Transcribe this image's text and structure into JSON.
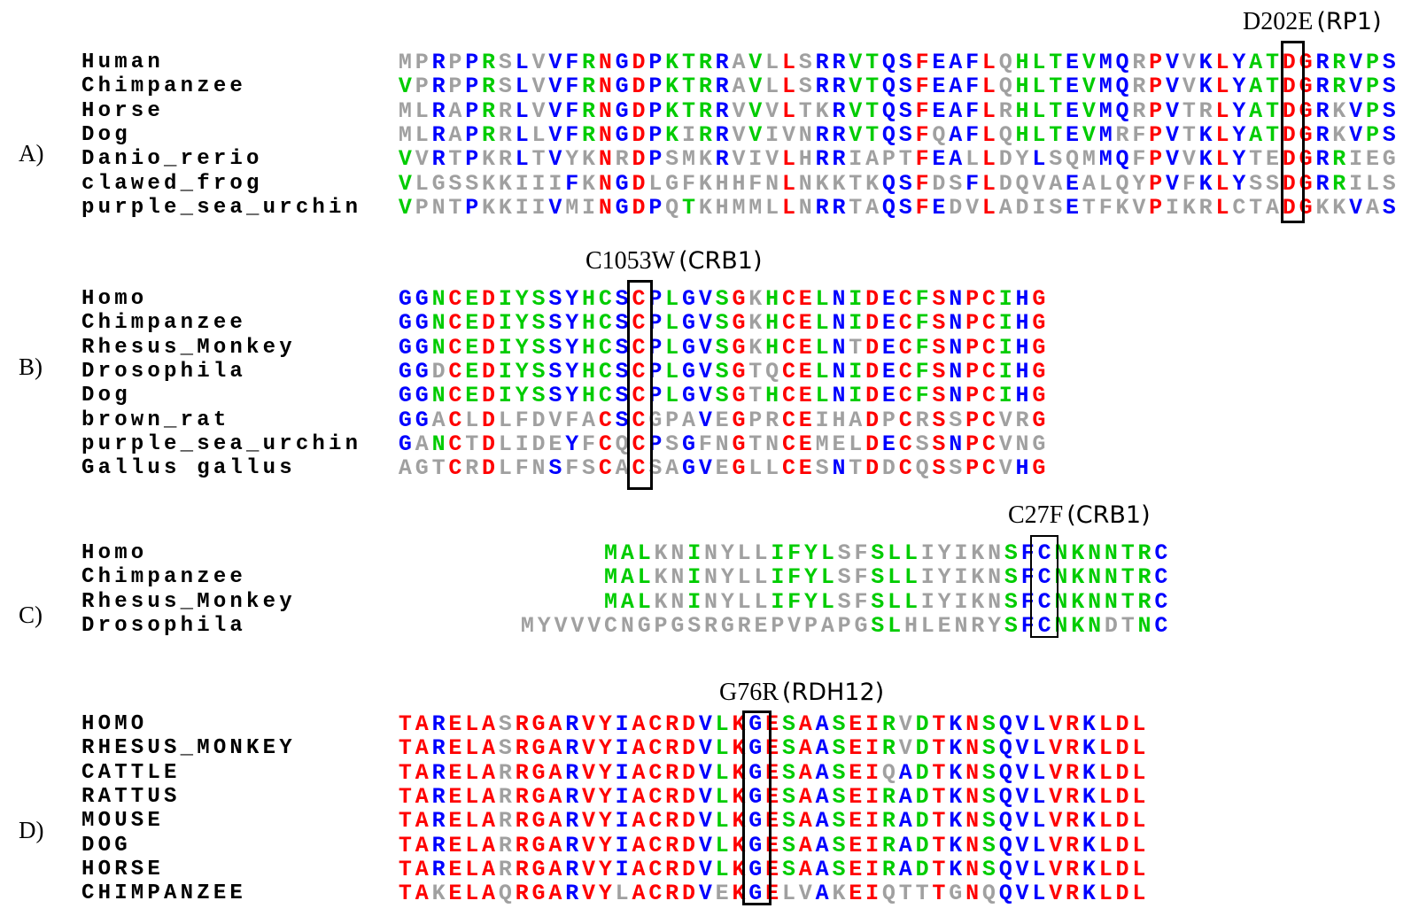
{
  "palette": {
    "b": "#0000ff",
    "r": "#ff0000",
    "g": "#00cc00",
    "x": "#a0a0a0"
  },
  "panels": [
    {
      "label": "A)",
      "mutation": "D202E",
      "gene": "(RP1)",
      "rows": [
        {
          "name": "Human",
          "seq": "MPRPPRSLVVFRNGDPKTRRAVLLSRRVTQSFEAFLQHLTEVMQRPVVKLYATDGRRVPS",
          "colors": "xxbxbgxbxbbgrbrbgggbxgxrxbbggbbrbbbrxgggbgbbxrbxbrbggrrbgbgb"
        },
        {
          "name": "Chimpanzee",
          "seq": "VPRPPRSLVVFRNGDPKTRRAVLLSRRVTQSFEAFLQHLTEVMQRPVVKLYATDGRRVPS",
          "colors": "gxbxbgxbxbbgrbrbgggbxgxrxbbggbbrbbbrxgggbgbbxrbxbrbggrrbgbgb"
        },
        {
          "name": "Horse",
          "seq": "MLRAPRRLVVFRNGDPKTRRVVVLTKRVTQSFEAFLRHLTEVMQRPVTRLYATDGRKVPS",
          "colors": "xxbxbgxbxbbgrbrbgggbxgxrxxbggbbrbbbrxgggbgbbxrbxxrbggrrbxbgb"
        },
        {
          "name": "Dog",
          "seq": "MLRAPRRLLVFRNGDPKIRRVVIVNRRVTQSFQAFLQHLTEVMRFPVTKLYATDGRKVPS",
          "colors": "xxbxbgxbxbbgrbrbgxgbxgxxxbbggbbrxbbrxgggbgbxxrbxbrbggrrbxbgb"
        },
        {
          "name": "Danio_rerio",
          "seq": "VVRTPKRLTVYKNRDPSMKRVIVLHRRIAPTFEALLDYLSQMMQFPVVKLYTEDGRRIEG",
          "colors": "gxbxbxxbxbxxrxrbxxxbxxxrxbbxxxxrbbxrxxbxxxbbxrbxbrbxxrrbgxxx"
        },
        {
          "name": "clawed_frog",
          "seq": "VLGSSKKIIIFKNGDLGFKHHFNLNKKTKQSFDSFLDQVAEALQYPVFKLYSSDGRRILS",
          "colors": "gxxxxxxxxxbxrbrxxxxxxxxrxxxxxbbrxxbrxxxxbxxxxrbxbrbxxrrbgxxx"
        },
        {
          "name": "purple_sea_urchin",
          "seq": "VPNTPKKIIVMINGDPQTKHMMLLNRRTAQSFEDVLADISETFKVPIKRLCTADGKKVAS",
          "colors": "gxxxbxxxxbxxrbrbxgxxxxxrxbbxxbbrbxxrxxxxbxxxxrxxxrxxxrrxxbxb"
        }
      ]
    },
    {
      "label": "B)",
      "mutation": "C1053W",
      "gene": "(CRB1)",
      "rows": [
        {
          "name": "Homo",
          "seq": "GGNCEDIYSSYHCSCPLGVSGKHCELNIDECFSNPCIHG",
          "colors": "bbgrgrgggbbggbrbgbbgrxgrrgbgrbrgrbrrgbr"
        },
        {
          "name": "Chimpanzee",
          "seq": "GGNCEDIYSSYHCSCPLGVSGKHCELNIDECFSNPCIHG",
          "colors": "bbgrgrgggbbggbrbgbbgrxgrrgbgrbrgrbrrgbr"
        },
        {
          "name": "Rhesus_Monkey",
          "seq": "GGNCEDIYSSYHCSCPLGVSGKHCELNTDECFSNPCIHG",
          "colors": "bbgrgrgggbbggbrbgbbgrxgrrgbxrbrgrbrrgbr"
        },
        {
          "name": "Drosophila",
          "seq": "GGDCEDIYSSYHCSCPLGVSGTQCELNIDECFSNPCIHG",
          "colors": "bbxrgrgggbbggbrbgbbgrxxrrgbgrbrgrbrrgbr"
        },
        {
          "name": "Dog",
          "seq": "GGNCEDIYSSYHCSCPLGVSGTHCELNIDECFSNPCIHG",
          "colors": "bbgrgrgggbbggbrbgbbgrxgrrgbgrbrgrbrrgbr"
        },
        {
          "name": "brown_rat",
          "seq": "GGACLDLFDVFACSCGPAVEGPRCEIHADPCRSSPCVRG",
          "colors": "bbxrxrxxxxxxrbrxxxbxrxxrrxxxrxrxrxrrxxr"
        },
        {
          "name": "purple_sea_urchin",
          "seq": "GANCTDLIDEYFCQCPSGFNGTNCEMELDECSSNPCVNG",
          "colors": "bxgrxrxxxxbxrxrbxbxxrxxrrxxxrbrxrbrrxxx"
        },
        {
          "name": "Gallus gallus",
          "seq": "AGTCRDLFNSFSCACSAGVEGLLCESNTDDCQSSPCVHG",
          "colors": "xxxrxrxxxbxxrxrxxbbxrxxrrxbxrxrxrxrrxbr"
        }
      ]
    },
    {
      "label": "C)",
      "mutation": "C27F",
      "gene": "(CRB1)",
      "rows": [
        {
          "name": "Homo",
          "seq": "     MALKNINYLLIFYLSFSLLIYIKNSFCNKNNTRC",
          "colors": "     gggxxgxxxxggggxxgggxxxxxgbbggggggb"
        },
        {
          "name": "Chimpanzee",
          "seq": "     MALKNINYLLIFYLSFSLLIYIKNSFCNKNNTRC",
          "colors": "     gggxxgxxxxggggxxgggxxxxxgbbggggggb"
        },
        {
          "name": "Rhesus_Monkey",
          "seq": "     MALKNINYLLIFYLSFSLLIYIKNSFCNKNNTRC",
          "colors": "     gggxxgxxxxggggxxgggxxxxxgbbggggggb"
        },
        {
          "name": "Drosophila",
          "seq": "MYVVVCNGPGSRGREPVPAPGSLHLENRYSFCNKNDTNC",
          "colors": "xxxxxxxxxxxxxxxxxxxxxggxxxxxxgbbgggxxgb"
        }
      ]
    },
    {
      "label": "D)",
      "mutation": "G76R",
      "gene": "(RDH12)",
      "rows": [
        {
          "name": "HOMO",
          "seq": "TARELASRGARVYIACRDVLKGESAASEIRVDTKNSQVLVRKLDL",
          "colors": "rrbrrrxrrrbrrbrrrrbgrbrgrbgrrgxgrbrgbbbrrbrrr"
        },
        {
          "name": "RHESUS_MONKEY",
          "seq": "TARELASRGARVYIACRDVLKGESAASEIRVDTKNSQVLVRKLDL",
          "colors": "rrbrrrxrrrbrrbrrrrbgrbrgrbgrrgxgrbrgbbbrrbrrr"
        },
        {
          "name": "CATTLE",
          "seq": "TARELARRGARVYIACRDVLKGESAASEIQADTKNSQVLVRKLDL",
          "colors": "rrbrrrxrrrbrrbrrrrbgrbrgrbgrrxbgrbrgbbbrrbrrr"
        },
        {
          "name": "RATTUS",
          "seq": "TARELARRGARVYIACRDVLKGESAASEIRADTKNSQVLVRKLDL",
          "colors": "rrbrrrxrrrbrrbrrrrbgrbrgrbgrrgbgrbrgbbbrrbrrr"
        },
        {
          "name": "MOUSE",
          "seq": "TARELARRGARVYIACRDVLKGESAASEIRADTKNSQVLVRKLDL",
          "colors": "rrbrrrxrrrbrrbrrrrbgrbrgrbgrrgbgrbrgbbbrrbrrr"
        },
        {
          "name": "DOG",
          "seq": "TARELARRGARVYIACRDVLKGESAASEIRADTKNSQVLVRKLDL",
          "colors": "rrbrrrxrrrbrrbrrrrbgrbrgrbgrrgbgrbrgbbbrrbrrr"
        },
        {
          "name": "HORSE",
          "seq": "TARELARRGARVYIACRDVLKGESAASEIRADTKNSQVLVRKLDL",
          "colors": "rrbrrrxrrrbrrbrrrrbgrbrgrbgrrgbgrbrgbbbrrbrrr"
        },
        {
          "name": "CHIMPANZEE",
          "seq": "TAKELAQRGARVYLACRDVEKGELVAKEIQTTTGNQQVLVRKLDL",
          "colors": "rrxrrrxrrrbrrxrrrrbxrbrxxbxrrxxxrxrxbbbrrbrrr"
        }
      ]
    }
  ]
}
